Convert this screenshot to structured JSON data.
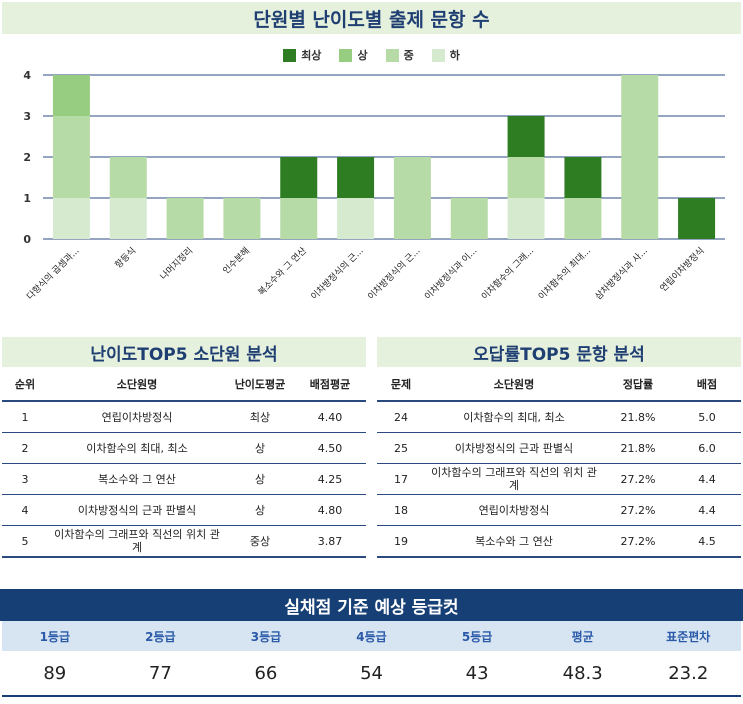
{
  "title": "단원별 난이도별 출제 문항 수",
  "chart_data": {
    "type": "bar",
    "stacked": true,
    "categories": [
      "다항식의 곱셈과...",
      "항등식",
      "나머지정리",
      "인수분해",
      "복소수와 그 연산",
      "이차방정식의 근...",
      "이차방정식의 근...",
      "이차방정식과 이...",
      "이차함수의 그래...",
      "이차함수의 최대...",
      "삼차방정식과 사...",
      "연립이차방정식"
    ],
    "series": [
      {
        "name": "하",
        "color": "#d6ead0",
        "values": [
          1,
          1,
          0,
          0,
          0,
          1,
          0,
          0,
          1,
          0,
          0,
          0
        ]
      },
      {
        "name": "중",
        "color": "#b7dba6",
        "values": [
          2,
          1,
          1,
          1,
          1,
          0,
          2,
          1,
          1,
          1,
          4,
          0
        ]
      },
      {
        "name": "상",
        "color": "#97cd81",
        "values": [
          1,
          0,
          0,
          0,
          0,
          0,
          0,
          0,
          0,
          0,
          0,
          0
        ]
      },
      {
        "name": "최상",
        "color": "#2f7d23",
        "values": [
          0,
          0,
          0,
          0,
          1,
          1,
          0,
          0,
          1,
          1,
          0,
          1
        ]
      }
    ],
    "legend_order": [
      "최상",
      "상",
      "중",
      "하"
    ],
    "ylim": [
      0,
      4
    ],
    "yticks": [
      0,
      1,
      2,
      3,
      4
    ],
    "legend_position": "top-center",
    "grid": true
  },
  "top5_difficulty": {
    "title": "난이도TOP5 소단원 분석",
    "headers": [
      "순위",
      "소단원명",
      "난이도평균",
      "배점평균"
    ],
    "rows": [
      [
        "1",
        "연립이차방정식",
        "최상",
        "4.40"
      ],
      [
        "2",
        "이차함수의 최대, 최소",
        "상",
        "4.50"
      ],
      [
        "3",
        "복소수와 그 연산",
        "상",
        "4.25"
      ],
      [
        "4",
        "이차방정식의 근과 판별식",
        "상",
        "4.80"
      ],
      [
        "5",
        "이차함수의 그래프와 직선의 위치 관계",
        "중상",
        "3.87"
      ]
    ]
  },
  "top5_error": {
    "title": "오답률TOP5 문항 분석",
    "headers": [
      "문제",
      "소단원명",
      "정답률",
      "배점"
    ],
    "rows": [
      [
        "24",
        "이차함수의 최대, 최소",
        "21.8%",
        "5.0"
      ],
      [
        "25",
        "이차방정식의 근과 판별식",
        "21.8%",
        "6.0"
      ],
      [
        "17",
        "이차함수의 그래프와 직선의 위치 관계",
        "27.2%",
        "4.4"
      ],
      [
        "18",
        "연립이차방정식",
        "27.2%",
        "4.4"
      ],
      [
        "19",
        "복소수와 그 연산",
        "27.2%",
        "4.5"
      ]
    ]
  },
  "grade_cut": {
    "title": "실채점 기준 예상 등급컷",
    "labels": [
      "1등급",
      "2등급",
      "3등급",
      "4등급",
      "5등급",
      "평균",
      "표준편차"
    ],
    "values": [
      "89",
      "77",
      "66",
      "54",
      "43",
      "48.3",
      "23.2"
    ]
  }
}
